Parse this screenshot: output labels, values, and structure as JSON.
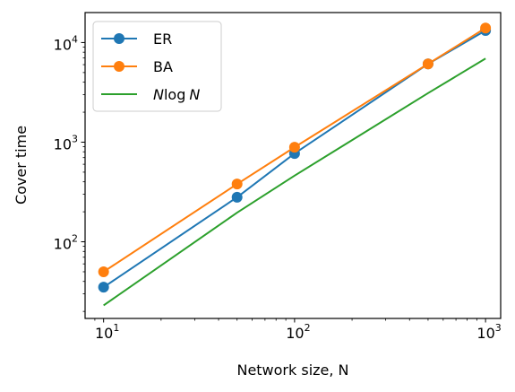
{
  "chart_data": {
    "type": "line",
    "xlabel": "Network size, N",
    "ylabel": "Cover time",
    "xscale": "log",
    "yscale": "log",
    "xlim": [
      8.0,
      1200
    ],
    "ylim": [
      17,
      20000
    ],
    "x_ticks": [
      {
        "value": 10,
        "base": "10",
        "exp": "1"
      },
      {
        "value": 100,
        "base": "10",
        "exp": "2"
      },
      {
        "value": 1000,
        "base": "10",
        "exp": "3"
      }
    ],
    "y_ticks": [
      {
        "value": 100,
        "base": "10",
        "exp": "2"
      },
      {
        "value": 1000,
        "base": "10",
        "exp": "3"
      },
      {
        "value": 10000,
        "base": "10",
        "exp": "4"
      }
    ],
    "legend_position": "top-left",
    "series": [
      {
        "name": "ER",
        "color": "#1f77b4",
        "marker": "circle",
        "x": [
          10,
          50,
          100,
          500,
          1000
        ],
        "y": [
          35,
          280,
          770,
          6100,
          13200
        ]
      },
      {
        "name": "BA",
        "color": "#ff7f0e",
        "marker": "circle",
        "x": [
          10,
          50,
          100,
          500,
          1000
        ],
        "y": [
          50,
          380,
          890,
          6100,
          14000
        ]
      },
      {
        "name": "N log N",
        "color": "#2ca02c",
        "marker": "none",
        "x": [
          10,
          50,
          100,
          500,
          1000
        ],
        "y": [
          23,
          196,
          461,
          3107,
          6908
        ]
      }
    ]
  }
}
